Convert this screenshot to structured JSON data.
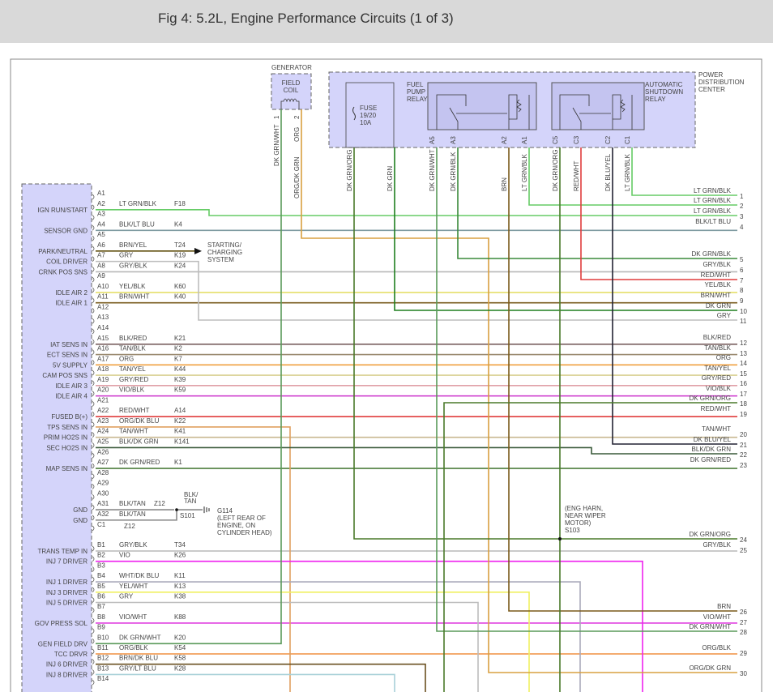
{
  "header": {
    "title": "Fig 4: 5.2L, Engine Performance Circuits (1 of 3)"
  },
  "generator": {
    "title": "GENERATOR",
    "coil_label": [
      "FIELD",
      "COIL"
    ],
    "pins": [
      {
        "num": "1",
        "wire": "DK GRN/WHT"
      },
      {
        "num": "2",
        "wire": "ORG",
        "continues_as": "ORG/DK GRN"
      }
    ]
  },
  "pdc": {
    "title": [
      "POWER",
      "DISTRIBUTION",
      "CENTER"
    ],
    "fuse": [
      "FUSE",
      "19/20",
      "10A"
    ],
    "fuel_pump_relay": [
      "FUEL",
      "PUMP",
      "RELAY"
    ],
    "asd_relay": [
      "AUTOMATIC",
      "SHUTDOWN",
      "RELAY"
    ],
    "pins": [
      {
        "pin": "",
        "wire": "DK GRN/ORG"
      },
      {
        "pin": "",
        "wire": "DK GRN"
      },
      {
        "pin": "A5",
        "wire": "DK GRN/WHT"
      },
      {
        "pin": "A3",
        "wire": "DK GRN/BLK"
      },
      {
        "pin": "A2",
        "wire": "BRN"
      },
      {
        "pin": "A1",
        "wire": "LT GRN/BLK"
      },
      {
        "pin": "C5",
        "wire": "DK GRN/ORG"
      },
      {
        "pin": "C3",
        "wire": "RED/WHT"
      },
      {
        "pin": "C2",
        "wire": "DK BLU/YEL"
      },
      {
        "pin": "C1",
        "wire": "LT GRN/BLK"
      }
    ]
  },
  "pcm_pins": [
    {
      "id": "A1",
      "func": "",
      "wire": "",
      "circuit": ""
    },
    {
      "id": "A2",
      "func": "IGN RUN/START",
      "wire": "LT GRN/BLK",
      "circuit": "F18"
    },
    {
      "id": "A3",
      "func": "",
      "wire": "",
      "circuit": ""
    },
    {
      "id": "A4",
      "func": "SENSOR GND",
      "wire": "BLK/LT BLU",
      "circuit": "K4"
    },
    {
      "id": "A5",
      "func": "",
      "wire": "",
      "circuit": ""
    },
    {
      "id": "A6",
      "func": "PARK/NEUTRAL",
      "wire": "BRN/YEL",
      "circuit": "T24"
    },
    {
      "id": "A7",
      "func": "COIL DRIVER",
      "wire": "GRY",
      "circuit": "K19"
    },
    {
      "id": "A8",
      "func": "CRNK POS SNS",
      "wire": "GRY/BLK",
      "circuit": "K24"
    },
    {
      "id": "A9",
      "func": "",
      "wire": "",
      "circuit": ""
    },
    {
      "id": "A10",
      "func": "IDLE AIR 2",
      "wire": "YEL/BLK",
      "circuit": "K60"
    },
    {
      "id": "A11",
      "func": "IDLE AIR 1",
      "wire": "BRN/WHT",
      "circuit": "K40"
    },
    {
      "id": "A12",
      "func": "",
      "wire": "",
      "circuit": ""
    },
    {
      "id": "A13",
      "func": "",
      "wire": "",
      "circuit": ""
    },
    {
      "id": "A14",
      "func": "",
      "wire": "",
      "circuit": ""
    },
    {
      "id": "A15",
      "func": "IAT SENS IN",
      "wire": "BLK/RED",
      "circuit": "K21"
    },
    {
      "id": "A16",
      "func": "ECT SENS IN",
      "wire": "TAN/BLK",
      "circuit": "K2"
    },
    {
      "id": "A17",
      "func": "5V SUPPLY",
      "wire": "ORG",
      "circuit": "K7"
    },
    {
      "id": "A18",
      "func": "CAM POS SNS",
      "wire": "TAN/YEL",
      "circuit": "K44"
    },
    {
      "id": "A19",
      "func": "IDLE AIR 3",
      "wire": "GRY/RED",
      "circuit": "K39"
    },
    {
      "id": "A20",
      "func": "IDLE AIR 4",
      "wire": "VIO/BLK",
      "circuit": "K59"
    },
    {
      "id": "A21",
      "func": "",
      "wire": "",
      "circuit": ""
    },
    {
      "id": "A22",
      "func": "FUSED B(+)",
      "wire": "RED/WHT",
      "circuit": "A14"
    },
    {
      "id": "A23",
      "func": "TPS SENS IN",
      "wire": "ORG/DK BLU",
      "circuit": "K22"
    },
    {
      "id": "A24",
      "func": "PRIM HO2S IN",
      "wire": "TAN/WHT",
      "circuit": "K41"
    },
    {
      "id": "A25",
      "func": "SEC HO2S IN",
      "wire": "BLK/DK GRN",
      "circuit": "K141"
    },
    {
      "id": "A26",
      "func": "",
      "wire": "",
      "circuit": ""
    },
    {
      "id": "A27",
      "func": "MAP SENS IN",
      "wire": "DK GRN/RED",
      "circuit": "K1"
    },
    {
      "id": "A28",
      "func": "",
      "wire": "",
      "circuit": ""
    },
    {
      "id": "A29",
      "func": "",
      "wire": "",
      "circuit": ""
    },
    {
      "id": "A30",
      "func": "",
      "wire": "",
      "circuit": ""
    },
    {
      "id": "A31",
      "func": "GND",
      "wire": "BLK/TAN",
      "circuit": "Z12"
    },
    {
      "id": "A32",
      "func": "GND",
      "wire": "BLK/TAN",
      "circuit": ""
    },
    {
      "id": "C1",
      "func": "",
      "wire": "",
      "circuit": "Z12"
    },
    {
      "id": "B1",
      "func": "TRANS TEMP IN",
      "wire": "GRY/BLK",
      "circuit": "T34"
    },
    {
      "id": "B2",
      "func": "INJ 7 DRIVER",
      "wire": "VIO",
      "circuit": "K26"
    },
    {
      "id": "B3",
      "func": "",
      "wire": "",
      "circuit": ""
    },
    {
      "id": "B4",
      "func": "INJ 1 DRIVER",
      "wire": "WHT/DK BLU",
      "circuit": "K11"
    },
    {
      "id": "B5",
      "func": "INJ 3 DRIVER",
      "wire": "YEL/WHT",
      "circuit": "K13"
    },
    {
      "id": "B6",
      "func": "INJ 5 DRIVER",
      "wire": "GRY",
      "circuit": "K38"
    },
    {
      "id": "B7",
      "func": "",
      "wire": "",
      "circuit": ""
    },
    {
      "id": "B8",
      "func": "GOV PRESS SOL",
      "wire": "VIO/WHT",
      "circuit": "K88"
    },
    {
      "id": "B9",
      "func": "",
      "wire": "",
      "circuit": ""
    },
    {
      "id": "B10",
      "func": "GEN FIELD DRV",
      "wire": "DK GRN/WHT",
      "circuit": "K20"
    },
    {
      "id": "B11",
      "func": "TCC DRVR",
      "wire": "ORG/BLK",
      "circuit": "K54"
    },
    {
      "id": "B12",
      "func": "INJ 6 DRIVER",
      "wire": "BRN/DK BLU",
      "circuit": "K58"
    },
    {
      "id": "B13",
      "func": "INJ 8 DRIVER",
      "wire": "GRY/LT BLU",
      "circuit": "K28"
    },
    {
      "id": "B14",
      "func": "",
      "wire": "",
      "circuit": ""
    }
  ],
  "starting_charging": [
    "STARTING/",
    "CHARGING",
    "SYSTEM"
  ],
  "ground": {
    "splice": "S101",
    "wire": [
      "BLK/",
      "TAN"
    ],
    "id": "G114",
    "location": [
      "(LEFT REAR OF",
      "ENGINE, ON",
      "CYLINDER HEAD)"
    ]
  },
  "splice_s103": [
    "(ENG HARN,",
    "NEAR WIPER",
    "MOTOR)",
    "S103"
  ],
  "outputs": [
    {
      "n": "1",
      "label": "LT GRN/BLK"
    },
    {
      "n": "2",
      "label": "LT GRN/BLK"
    },
    {
      "n": "3",
      "label": "LT GRN/BLK"
    },
    {
      "n": "4",
      "label": "BLK/LT BLU"
    },
    {
      "n": "5",
      "label": "DK GRN/BLK"
    },
    {
      "n": "6",
      "label": "GRY/BLK"
    },
    {
      "n": "7",
      "label": "RED/WHT"
    },
    {
      "n": "8",
      "label": "YEL/BLK"
    },
    {
      "n": "9",
      "label": "BRN/WHT"
    },
    {
      "n": "10",
      "label": "DK GRN"
    },
    {
      "n": "11",
      "label": "GRY"
    },
    {
      "n": "12",
      "label": "BLK/RED"
    },
    {
      "n": "13",
      "label": "TAN/BLK"
    },
    {
      "n": "14",
      "label": "ORG"
    },
    {
      "n": "15",
      "label": "TAN/YEL"
    },
    {
      "n": "16",
      "label": "GRY/RED"
    },
    {
      "n": "17",
      "label": "VIO/BLK"
    },
    {
      "n": "18",
      "label": "DK GRN/ORG"
    },
    {
      "n": "19",
      "label": "RED/WHT"
    },
    {
      "n": "20",
      "label": "TAN/WHT"
    },
    {
      "n": "21",
      "label": "DK BLU/YEL"
    },
    {
      "n": "22",
      "label": "BLK/DK GRN"
    },
    {
      "n": "23",
      "label": "DK GRN/RED"
    },
    {
      "n": "24",
      "label": "DK GRN/ORG"
    },
    {
      "n": "25",
      "label": "GRY/BLK"
    },
    {
      "n": "26",
      "label": "BRN"
    },
    {
      "n": "27",
      "label": "VIO/WHT"
    },
    {
      "n": "28",
      "label": "DK GRN/WHT"
    },
    {
      "n": "29",
      "label": "ORG/BLK"
    },
    {
      "n": "30",
      "label": "ORG/DK GRN"
    }
  ],
  "wire_colors": {
    "LT GRN/BLK": "#66cc66",
    "BLK/LT BLU": "#7d9aa0",
    "BRN/YEL": "#5e4c0a",
    "GRY": "#bdbdbd",
    "GRY/BLK": "#b8b8b8",
    "YEL/BLK": "#e6df6a",
    "BRN/WHT": "#7a5c1e",
    "BLK/RED": "#7a6060",
    "TAN/BLK": "#9a8a70",
    "ORG": "#f0a040",
    "TAN/YEL": "#d8cf90",
    "GRY/RED": "#e0a0a8",
    "VIO/BLK": "#cc33cc",
    "RED/WHT": "#e03c3c",
    "ORG/DK BLU": "#e0a060",
    "TAN/WHT": "#c8b890",
    "BLK/DK GRN": "#3a5a3a",
    "DK GRN/RED": "#4f7f3f",
    "BLK/TAN": "#888888",
    "VIO": "#ee22ee",
    "WHT/DK BLU": "#aaaabb",
    "YEL/WHT": "#f0f060",
    "VIO/WHT": "#e040e0",
    "DK GRN/WHT": "#5a9a5a",
    "ORG/BLK": "#f09040",
    "BRN/DK BLU": "#6a5020",
    "GRY/LT BLU": "#a8d0d8",
    "DK GRN/ORG": "#4a7a2a",
    "DK GRN": "#1f7f1f",
    "DK GRN/BLK": "#3a8a3a",
    "BRN": "#7a5a1a",
    "DK BLU/YEL": "#222233",
    "ORG/DK GRN": "#d8a040"
  }
}
